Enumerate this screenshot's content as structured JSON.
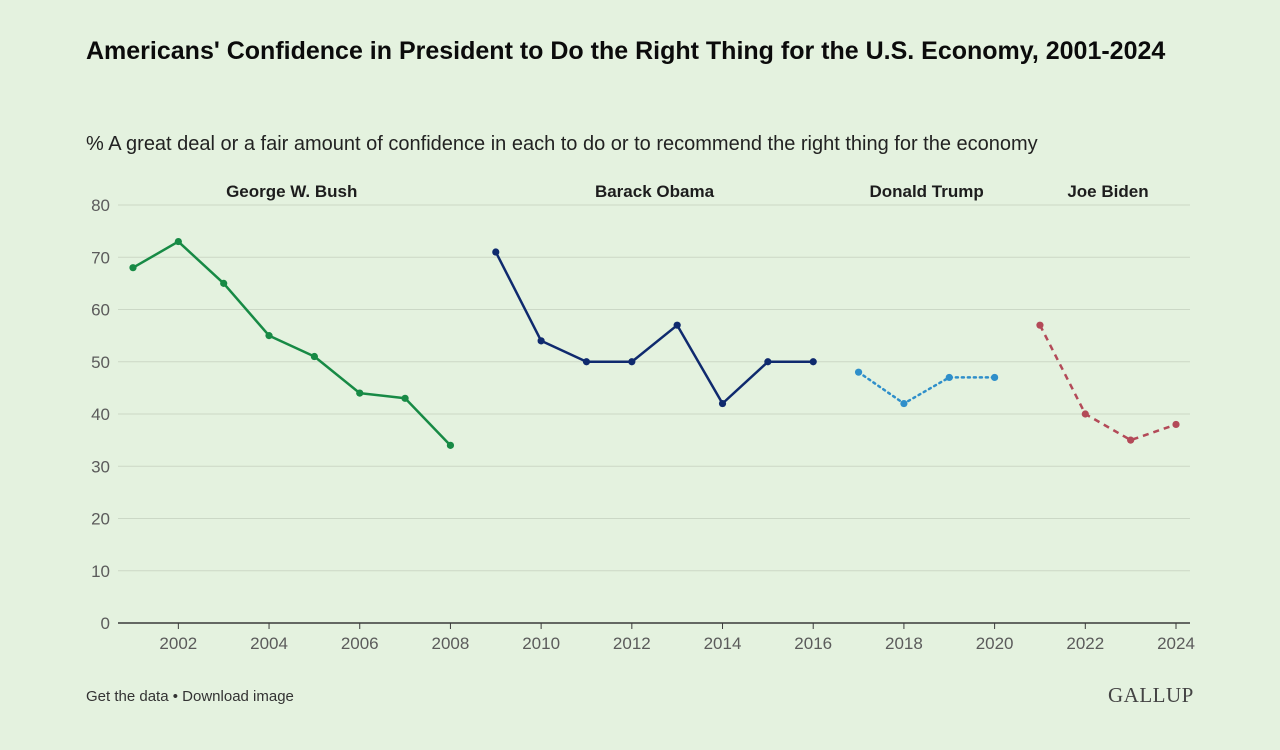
{
  "header": {
    "title": "Americans' Confidence in President to Do the Right Thing for the U.S. Economy, 2001-2024",
    "subtitle": "% A great deal or a fair amount of confidence in each to do or to recommend the right thing for the economy"
  },
  "footer": {
    "get_data": "Get the data",
    "separator": "•",
    "download_image": "Download image",
    "logo": "GALLUP"
  },
  "chart_data": {
    "type": "line",
    "title": "Americans' Confidence in President to Do the Right Thing for the U.S. Economy, 2001-2024",
    "subtitle": "% A great deal or a fair amount of confidence in each to do or to recommend the right thing for the economy",
    "xlabel": "",
    "ylabel": "",
    "xlim": [
      2001,
      2024
    ],
    "ylim": [
      0,
      80
    ],
    "yticks": [
      0,
      10,
      20,
      30,
      40,
      50,
      60,
      70,
      80
    ],
    "xticks": [
      2002,
      2004,
      2006,
      2008,
      2010,
      2012,
      2014,
      2016,
      2018,
      2020,
      2022,
      2024
    ],
    "grid": true,
    "series": [
      {
        "name": "George W. Bush",
        "color": "#178a45",
        "style": "solid",
        "x": [
          2001,
          2002,
          2003,
          2004,
          2005,
          2006,
          2007,
          2008
        ],
        "values": [
          68,
          73,
          65,
          55,
          51,
          44,
          43,
          34
        ]
      },
      {
        "name": "Barack Obama",
        "color": "#0f2a6e",
        "style": "solid",
        "x": [
          2009,
          2010,
          2011,
          2012,
          2013,
          2014,
          2015,
          2016
        ],
        "values": [
          71,
          54,
          50,
          50,
          57,
          42,
          50,
          50
        ]
      },
      {
        "name": "Donald Trump",
        "color": "#2f8fca",
        "style": "dotted",
        "x": [
          2017,
          2018,
          2019,
          2020
        ],
        "values": [
          48,
          42,
          47,
          47
        ]
      },
      {
        "name": "Joe Biden",
        "color": "#b34a58",
        "style": "dashed",
        "x": [
          2021,
          2022,
          2023,
          2024
        ],
        "values": [
          57,
          40,
          35,
          38
        ]
      }
    ]
  }
}
